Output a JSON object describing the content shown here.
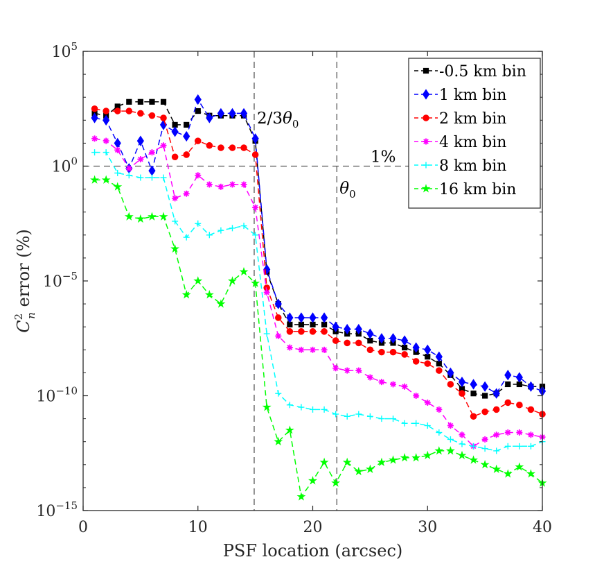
{
  "chart_data": {
    "type": "line",
    "title": "",
    "xlabel": "PSF location (arcsec)",
    "ylabel": "C_n^2 error (%)",
    "ylabel_parts": {
      "base": "C",
      "sup": "2",
      "sub": "n",
      "rest": " error (%)"
    },
    "xlim": [
      0,
      40
    ],
    "ylim_log10": [
      -15,
      5
    ],
    "yscale": "log",
    "xticks": [
      0,
      10,
      20,
      30,
      40
    ],
    "yticks": [
      {
        "exp": 5,
        "base": "10",
        "sup": "5"
      },
      {
        "exp": 0,
        "base": "10",
        "sup": "0"
      },
      {
        "exp": -5,
        "base": "10",
        "sup": "−5"
      },
      {
        "exp": -10,
        "base": "10",
        "sup": "−10"
      },
      {
        "exp": -15,
        "base": "10",
        "sup": "−15"
      }
    ],
    "grid": false,
    "legend_position": "top-right",
    "x": [
      1,
      2,
      3,
      4,
      5,
      6,
      7,
      8,
      9,
      10,
      11,
      12,
      13,
      14,
      15,
      16,
      17,
      18,
      19,
      20,
      21,
      22,
      23,
      24,
      25,
      26,
      27,
      28,
      29,
      30,
      31,
      32,
      33,
      34,
      35,
      36,
      37,
      38,
      39,
      40
    ],
    "series": [
      {
        "name": "-0.5 km bin",
        "color": "#000000",
        "marker": "square",
        "log10_values": [
          2.3,
          2.2,
          2.6,
          2.8,
          2.8,
          2.8,
          2.8,
          1.8,
          1.8,
          2.4,
          2.2,
          2.2,
          2.2,
          2.2,
          1.1,
          -4.6,
          -6,
          -6.9,
          -6.9,
          -6.9,
          -6.9,
          -7.2,
          -7.3,
          -7.3,
          -7.6,
          -7.7,
          -7.7,
          -7.9,
          -8.1,
          -8.3,
          -8.6,
          -9.1,
          -9.7,
          -9.9,
          -10,
          -9.9,
          -9.5,
          -9.5,
          -9.6,
          -9.6
        ]
      },
      {
        "name": "1 km bin",
        "color": "#0000ff",
        "marker": "diamond",
        "log10_values": [
          2.1,
          2,
          1,
          -0.1,
          1.1,
          -0.2,
          1.8,
          1.5,
          1.3,
          2.9,
          2.1,
          2.3,
          2.3,
          2.3,
          1.2,
          -4.5,
          -6,
          -6.6,
          -6.6,
          -6.6,
          -6.6,
          -7,
          -7.1,
          -7.1,
          -7.3,
          -7.5,
          -7.5,
          -7.6,
          -7.9,
          -8,
          -8.3,
          -9,
          -9.4,
          -9.5,
          -9.6,
          -9.9,
          -9.1,
          -9.2,
          -9.6,
          -9.8
        ]
      },
      {
        "name": "2 km bin",
        "color": "#ff0000",
        "marker": "circle",
        "log10_values": [
          2.5,
          2.4,
          2.4,
          2.4,
          2.3,
          2.2,
          2.1,
          0.4,
          0.5,
          1.1,
          0.9,
          0.8,
          0.8,
          0.8,
          0.5,
          -5.3,
          -6.6,
          -7.2,
          -7.2,
          -7.2,
          -7.2,
          -7.6,
          -7.7,
          -7.7,
          -8,
          -8.1,
          -8.1,
          -8.2,
          -8.5,
          -8.6,
          -8.9,
          -9.5,
          -9.9,
          -10.9,
          -10.7,
          -10.6,
          -10.3,
          -10.4,
          -10.6,
          -10.8
        ]
      },
      {
        "name": "4 km bin",
        "color": "#ff00ff",
        "marker": "asterisk",
        "log10_values": [
          1.2,
          1.1,
          0.7,
          -0.1,
          0.3,
          0.6,
          0.9,
          -1.4,
          -1.2,
          -0.4,
          -0.8,
          -0.9,
          -0.8,
          -0.8,
          -1.8,
          -5.5,
          -7.4,
          -7.9,
          -8,
          -8,
          -8,
          -8.8,
          -8.9,
          -8.9,
          -9.2,
          -9.4,
          -9.5,
          -9.6,
          -10,
          -10.3,
          -10.6,
          -11.3,
          -11.7,
          -12.2,
          -11.9,
          -11.7,
          -11.6,
          -11.6,
          -11.7,
          -11.8
        ]
      },
      {
        "name": "8 km bin",
        "color": "#00ffff",
        "marker": "plus",
        "log10_values": [
          0.6,
          0.6,
          -0.3,
          -0.4,
          -0.5,
          -0.5,
          -0.5,
          -2.4,
          -3.1,
          -2.5,
          -3,
          -2.8,
          -2.7,
          -2.6,
          -3,
          -7.3,
          -9.9,
          -10.4,
          -10.5,
          -10.6,
          -10.6,
          -10.8,
          -10.9,
          -10.8,
          -10.9,
          -11,
          -11,
          -11.2,
          -11.2,
          -11.3,
          -11.6,
          -11.9,
          -12.1,
          -12.2,
          -12.3,
          -12.4,
          -12.2,
          -12.2,
          -12.2,
          -12.0
        ]
      },
      {
        "name": "16 km bin",
        "color": "#00ff00",
        "marker": "pentagram",
        "log10_values": [
          -0.6,
          -0.6,
          -0.9,
          -2.2,
          -2.3,
          -2.2,
          -2.2,
          -3.6,
          -5.6,
          -5,
          -5.6,
          -6,
          -5,
          -4.6,
          -5.1,
          -10.5,
          -12,
          -11.5,
          -14.4,
          -13.7,
          -12.9,
          -13.8,
          -12.9,
          -13.3,
          -13.2,
          -12.9,
          -12.8,
          -12.7,
          -12.7,
          -12.6,
          -12.4,
          -12.4,
          -12.6,
          -12.8,
          -13.0,
          -13.2,
          -13.4,
          -13.1,
          -13.4,
          -13.8
        ]
      }
    ],
    "annotations": [
      {
        "text_base": "2/3",
        "text_sym": "θ",
        "text_sub": "0",
        "x": 14.9
      },
      {
        "text_base": "",
        "text_sym": "θ",
        "text_sub": "0",
        "x": 22.1
      },
      {
        "text": "1%",
        "y_log10": 0
      }
    ]
  }
}
